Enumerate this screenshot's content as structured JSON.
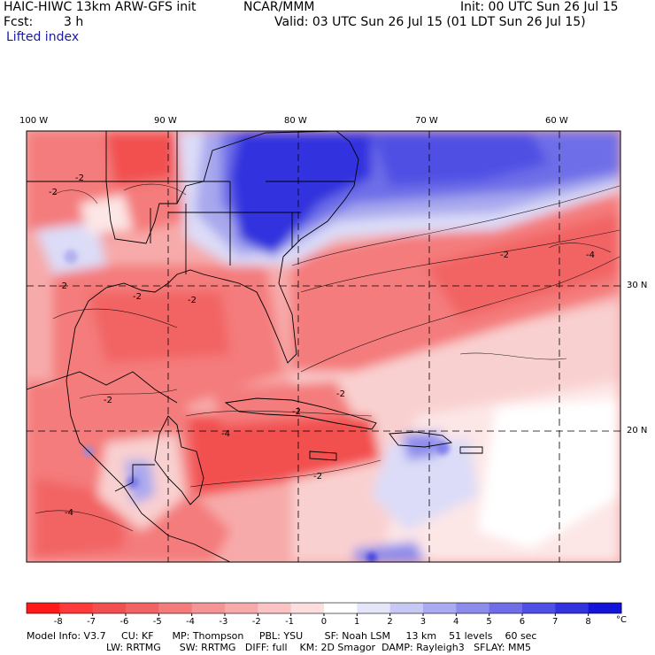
{
  "header": {
    "title_left": "HAIC-HIWC 13km ARW-GFS init",
    "org": "NCAR/MMM",
    "init": "Init: 00 UTC Sun 26 Jul 15",
    "fcst_label": "Fcst:",
    "fcst_value": "3 h",
    "valid": "Valid: 03 UTC Sun 26 Jul 15 (01 LDT Sun 26 Jul 15)",
    "field": "Lifted index"
  },
  "map": {
    "lon_labels": [
      "100 W",
      "90 W",
      "80 W",
      "70 W",
      "60 W"
    ],
    "lat_labels": [
      "30 N",
      "20 N"
    ],
    "contour_labels": [
      "-2",
      "-2",
      "-2",
      "-2",
      "-2",
      "-2",
      "-2",
      "-2",
      "-4",
      "-4",
      "-2",
      "-4",
      "-2"
    ],
    "colors": {
      "deep_red": "#ff1a1a",
      "red": "#f25050",
      "light_red": "#f7a0a0",
      "pale_red": "#fcdede",
      "white": "#ffffff",
      "pale_blue": "#dcdcf8",
      "light_blue": "#a8a8ee",
      "blue": "#5a5ae6",
      "deep_blue": "#1414d8"
    }
  },
  "colorbar": {
    "ticks": [
      "-8",
      "-7",
      "-6",
      "-5",
      "-4",
      "-3",
      "-2",
      "-1",
      "0",
      "1",
      "2",
      "3",
      "4",
      "5",
      "6",
      "7",
      "8"
    ],
    "unit": "°C",
    "colors": [
      "#ff1a1a",
      "#ff3a3a",
      "#f25050",
      "#f26464",
      "#f47c7c",
      "#f59494",
      "#f7aaaa",
      "#fac4c4",
      "#fcdede",
      "#ffffff",
      "#e6e6fa",
      "#c8c8f5",
      "#aaaaf0",
      "#8c8cec",
      "#6e6ee8",
      "#5050e4",
      "#3232de",
      "#1414d8"
    ]
  },
  "footer": {
    "line1": "Model Info: V3.7     CU: KF      MP: Thompson     PBL: YSU       SF: Noah LSM     13 km    51 levels    60 sec",
    "line2": "LW: RRTMG      SW: RRTMG   DIFF: full    KM: 2D Smagor  DAMP: Rayleigh3   SFLAY: MM5"
  }
}
